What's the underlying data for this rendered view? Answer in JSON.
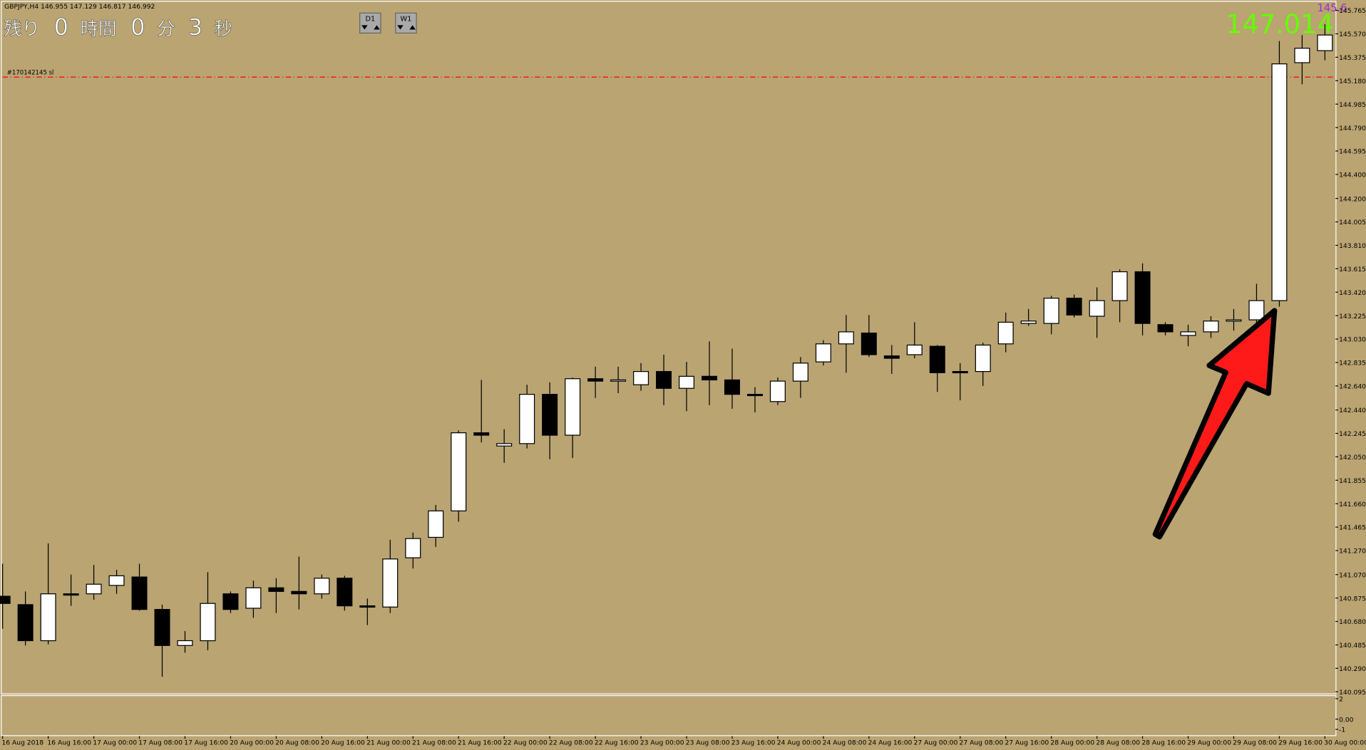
{
  "header": "GBPJPY,H4  146.955 147.129 146.817 146.992",
  "countdown": [
    "残り",
    "0",
    "時間",
    "0",
    "分",
    "3",
    "秒"
  ],
  "buttons": [
    "D1",
    "W1"
  ],
  "price_labels": {
    "current": "147.014",
    "partial": "145.6"
  },
  "chart_data": {
    "type": "candlestick",
    "up_color": "#ffffff",
    "down_color": "#000000",
    "wick_color": "#000000",
    "background": "#b9a472",
    "categories": [
      "16 Aug 2018",
      null,
      "16 Aug 16:00",
      null,
      "17 Aug 00:00",
      null,
      "17 Aug 08:00",
      null,
      "17 Aug 16:00",
      null,
      "20 Aug 00:00",
      null,
      "20 Aug 08:00",
      null,
      "20 Aug 16:00",
      null,
      "21 Aug 00:00",
      null,
      "21 Aug 08:00",
      null,
      "21 Aug 16:00",
      null,
      "22 Aug 00:00",
      null,
      "22 Aug 08:00",
      null,
      "22 Aug 16:00",
      null,
      "23 Aug 00:00",
      null,
      "23 Aug 08:00",
      null,
      "23 Aug 16:00",
      null,
      "24 Aug 00:00",
      null,
      "24 Aug 08:00",
      null,
      "24 Aug 16:00",
      null,
      "27 Aug 00:00",
      null,
      "27 Aug 08:00",
      null,
      "27 Aug 16:00",
      null,
      "28 Aug 00:00",
      null,
      "28 Aug 08:00",
      null,
      "28 Aug 16:00",
      null,
      "29 Aug 00:00",
      null,
      "29 Aug 08:00",
      null,
      "29 Aug 16:00",
      null,
      "30 Aug 00:00"
    ],
    "open": [
      140.89,
      140.82,
      140.52,
      140.91,
      140.91,
      140.98,
      141.05,
      140.78,
      140.48,
      140.52,
      140.91,
      140.79,
      140.96,
      140.93,
      140.91,
      141.04,
      140.81,
      140.8,
      141.21,
      141.38,
      141.6,
      142.25,
      142.14,
      142.16,
      142.57,
      142.23,
      142.7,
      142.68,
      142.65,
      142.76,
      142.62,
      142.72,
      142.69,
      142.57,
      142.51,
      142.68,
      142.84,
      142.99,
      143.08,
      142.89,
      142.9,
      142.97,
      142.76,
      142.76,
      142.99,
      143.16,
      143.16,
      143.37,
      143.22,
      143.35,
      143.59,
      143.15,
      143.06,
      143.09,
      143.18,
      143.19,
      143.35,
      145.33,
      145.43
    ],
    "high": [
      141.16,
      140.93,
      141.33,
      141.07,
      141.15,
      141.11,
      141.16,
      140.82,
      140.6,
      141.09,
      140.93,
      141.02,
      141.04,
      141.22,
      141.07,
      141.06,
      140.87,
      141.36,
      141.42,
      141.65,
      142.27,
      142.69,
      142.28,
      142.65,
      142.67,
      142.71,
      142.8,
      142.8,
      142.83,
      142.9,
      142.84,
      143.01,
      142.95,
      142.63,
      142.71,
      142.88,
      143.02,
      143.23,
      143.23,
      142.98,
      143.17,
      142.98,
      142.83,
      143.0,
      143.25,
      143.28,
      143.39,
      143.4,
      143.46,
      143.61,
      143.66,
      143.17,
      143.15,
      143.22,
      143.28,
      143.49,
      145.51,
      145.56,
      145.65
    ],
    "low": [
      140.62,
      140.48,
      140.49,
      140.81,
      140.86,
      140.91,
      140.77,
      140.22,
      140.42,
      140.44,
      140.75,
      140.71,
      140.75,
      140.78,
      140.87,
      140.77,
      140.65,
      140.75,
      141.12,
      141.3,
      141.51,
      142.17,
      142.0,
      142.12,
      142.03,
      142.04,
      142.54,
      142.58,
      142.6,
      142.48,
      142.43,
      142.48,
      142.45,
      142.42,
      142.48,
      142.54,
      142.81,
      142.75,
      142.88,
      142.74,
      142.87,
      142.59,
      142.52,
      142.64,
      142.92,
      143.14,
      143.07,
      143.21,
      143.04,
      143.17,
      143.06,
      143.06,
      142.97,
      143.04,
      143.1,
      143.16,
      143.3,
      145.15,
      145.35
    ],
    "close": [
      140.83,
      140.52,
      140.91,
      140.9,
      140.99,
      141.06,
      140.78,
      140.48,
      140.52,
      140.83,
      140.78,
      140.96,
      140.93,
      140.91,
      141.04,
      140.81,
      140.8,
      141.2,
      141.37,
      141.6,
      142.25,
      142.23,
      142.16,
      142.57,
      142.23,
      142.7,
      142.68,
      142.69,
      142.76,
      142.62,
      142.72,
      142.69,
      142.57,
      142.56,
      142.68,
      142.83,
      142.99,
      143.09,
      142.9,
      142.87,
      142.98,
      142.75,
      142.75,
      142.98,
      143.17,
      143.18,
      143.37,
      143.23,
      143.35,
      143.59,
      143.16,
      143.09,
      143.09,
      143.18,
      143.19,
      143.35,
      145.32,
      145.45,
      145.56
    ],
    "ylim": [
      140.081,
      145.837
    ],
    "yticks": [
      145.765,
      {
        "value": 145.57,
        "label": "145.570"
      },
      145.375,
      {
        "value": 145.18,
        "label": "145.180"
      },
      144.985,
      {
        "value": 144.79,
        "label": "144.790"
      },
      144.595,
      {
        "value": 144.4,
        "label": "144.400"
      },
      {
        "value": 144.2,
        "label": "144.200"
      },
      144.005,
      {
        "value": 143.81,
        "label": "143.810"
      },
      143.615,
      {
        "value": 143.42,
        "label": "143.420"
      },
      143.225,
      {
        "value": 143.03,
        "label": "143.030"
      },
      142.835,
      {
        "value": 142.64,
        "label": "142.640"
      },
      {
        "value": 142.44,
        "label": "142.440"
      },
      142.245,
      {
        "value": 142.05,
        "label": "142.050"
      },
      141.855,
      {
        "value": 141.66,
        "label": "141.660"
      },
      141.465,
      {
        "value": 141.27,
        "label": "141.270"
      },
      {
        "value": 141.07,
        "label": "141.070"
      },
      140.875,
      {
        "value": 140.68,
        "label": "140.680"
      },
      140.485,
      {
        "value": 140.29,
        "label": "140.290"
      },
      140.095
    ],
    "order_line": {
      "label": "#170142145 sl",
      "price": 145.21,
      "color": "#ff0000"
    },
    "indicator": {
      "ylim": [
        -1.57,
        2.34
      ],
      "yticks": [
        2,
        {
          "value": 0,
          "label": "0.00"
        },
        -1
      ]
    }
  }
}
